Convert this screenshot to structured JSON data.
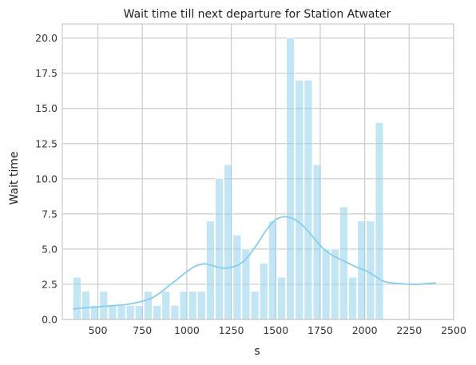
{
  "chart_data": {
    "type": "bar",
    "title": "Wait time till next departure for Station Atwater",
    "xlabel": "s",
    "ylabel": "Wait time",
    "xlim": [
      300,
      2500
    ],
    "ylim": [
      0,
      21
    ],
    "x_ticks": [
      500,
      750,
      1000,
      1250,
      1500,
      1750,
      2000,
      2250,
      2500
    ],
    "x_tick_labels": [
      "500",
      "750",
      "1000",
      "1250",
      "1500",
      "1750",
      "2000",
      "2250",
      "2500"
    ],
    "y_ticks": [
      0,
      2.5,
      5,
      7.5,
      10,
      12.5,
      15,
      17.5,
      20
    ],
    "y_tick_labels": [
      "0.0",
      "2.5",
      "5.0",
      "7.5",
      "10.0",
      "12.5",
      "15.0",
      "17.5",
      "20.0"
    ],
    "grid": true,
    "bar_color": "#87ceeb",
    "bar_opacity": 0.5,
    "kde_color": "#87ceeb",
    "bin_width": 45,
    "bins": [
      {
        "start": 360,
        "count": 3
      },
      {
        "start": 410,
        "count": 2
      },
      {
        "start": 460,
        "count": 1
      },
      {
        "start": 510,
        "count": 2
      },
      {
        "start": 560,
        "count": 1
      },
      {
        "start": 610,
        "count": 1
      },
      {
        "start": 660,
        "count": 1
      },
      {
        "start": 710,
        "count": 1
      },
      {
        "start": 760,
        "count": 2
      },
      {
        "start": 810,
        "count": 1
      },
      {
        "start": 860,
        "count": 2
      },
      {
        "start": 910,
        "count": 1
      },
      {
        "start": 960,
        "count": 2
      },
      {
        "start": 1010,
        "count": 2
      },
      {
        "start": 1060,
        "count": 2
      },
      {
        "start": 1110,
        "count": 7
      },
      {
        "start": 1160,
        "count": 10
      },
      {
        "start": 1210,
        "count": 11
      },
      {
        "start": 1260,
        "count": 6
      },
      {
        "start": 1310,
        "count": 5
      },
      {
        "start": 1360,
        "count": 2
      },
      {
        "start": 1410,
        "count": 4
      },
      {
        "start": 1460,
        "count": 7
      },
      {
        "start": 1510,
        "count": 3
      },
      {
        "start": 1560,
        "count": 20
      },
      {
        "start": 1610,
        "count": 17
      },
      {
        "start": 1660,
        "count": 17
      },
      {
        "start": 1710,
        "count": 11
      },
      {
        "start": 1760,
        "count": 5
      },
      {
        "start": 1810,
        "count": 5
      },
      {
        "start": 1860,
        "count": 8
      },
      {
        "start": 1910,
        "count": 3
      },
      {
        "start": 1960,
        "count": 7
      },
      {
        "start": 2010,
        "count": 7
      },
      {
        "start": 2060,
        "count": 14
      }
    ],
    "kde": {
      "x": [
        360,
        400,
        450,
        500,
        550,
        600,
        650,
        700,
        750,
        800,
        850,
        900,
        950,
        1000,
        1050,
        1100,
        1150,
        1200,
        1250,
        1300,
        1350,
        1400,
        1450,
        1500,
        1550,
        1600,
        1650,
        1700,
        1750,
        1800,
        1850,
        1900,
        1950,
        2000,
        2050,
        2100,
        2150,
        2200,
        2250,
        2300,
        2350,
        2400
      ],
      "y": [
        0.75,
        0.8,
        0.85,
        0.9,
        0.95,
        1.0,
        1.05,
        1.15,
        1.3,
        1.5,
        1.9,
        2.4,
        2.9,
        3.4,
        3.8,
        3.95,
        3.8,
        3.65,
        3.7,
        3.95,
        4.55,
        5.45,
        6.4,
        7.1,
        7.3,
        7.15,
        6.7,
        6.0,
        5.25,
        4.7,
        4.35,
        4.05,
        3.75,
        3.5,
        3.15,
        2.75,
        2.6,
        2.55,
        2.5,
        2.5,
        2.55,
        2.6
      ]
    }
  }
}
